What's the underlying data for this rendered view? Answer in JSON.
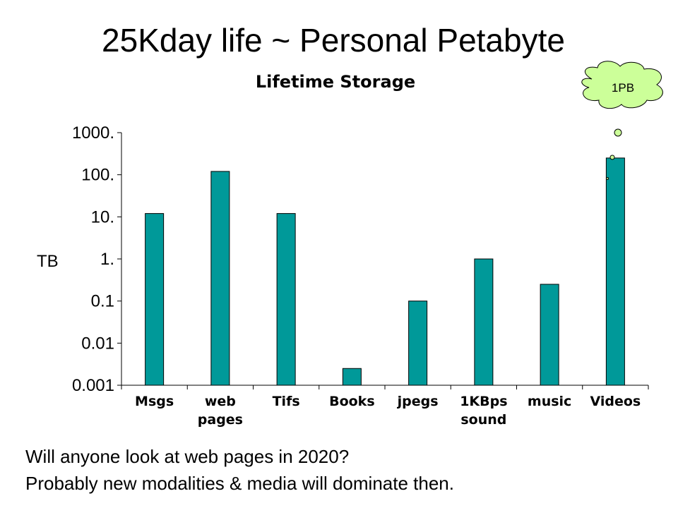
{
  "slide": {
    "title": "25Kday life ~ Personal Petabyte",
    "notes": [
      "Will anyone look at web pages in 2020?",
      "Probably new modalities & media will dominate then."
    ]
  },
  "callout": {
    "label": "1PB",
    "fill": "#ccff99"
  },
  "chart_data": {
    "type": "bar",
    "title": "Lifetime Storage",
    "ylabel": "TB",
    "xlabel": "",
    "yscale": "log",
    "ylim": [
      0.001,
      1000
    ],
    "yticks": [
      0.001,
      0.01,
      0.1,
      1,
      10,
      100,
      1000
    ],
    "ytick_labels": [
      "0.001",
      "0.01",
      "0.1",
      "1.",
      "10.",
      "100.",
      "1000."
    ],
    "categories": [
      [
        "Msgs"
      ],
      [
        "web",
        "pages"
      ],
      [
        "Tifs"
      ],
      [
        "Books"
      ],
      [
        "jpegs"
      ],
      [
        "1KBps",
        "sound"
      ],
      [
        "music"
      ],
      [
        "Videos"
      ]
    ],
    "values": [
      12,
      120,
      12,
      0.0025,
      0.1,
      1,
      0.25,
      250
    ],
    "bar_color": "#009999",
    "grid": false,
    "legend": "none"
  }
}
